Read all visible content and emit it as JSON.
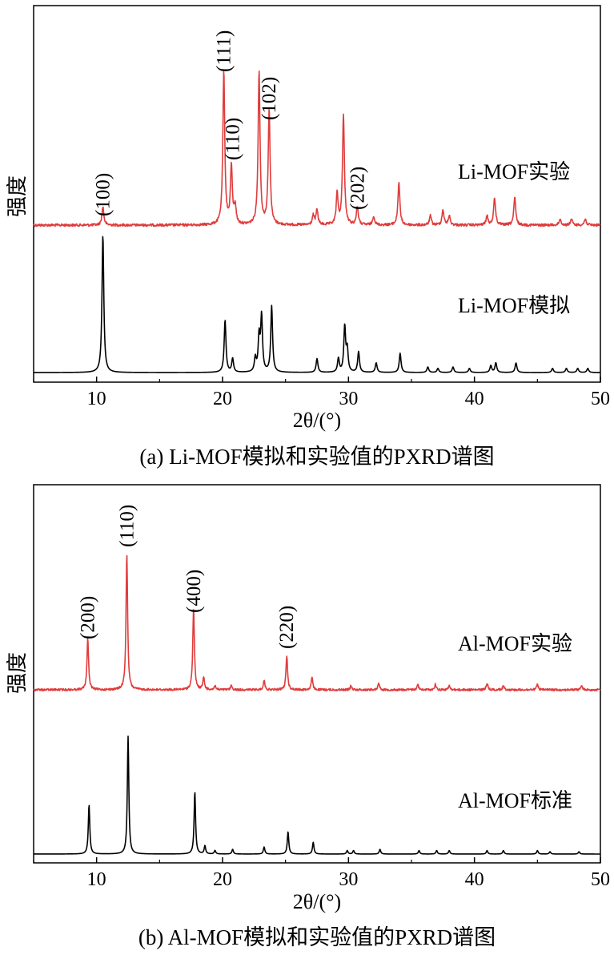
{
  "chart_data": [
    {
      "type": "line",
      "caption": "(a) Li-MOF模拟和实验值的PXRD谱图",
      "xlabel": "2θ/(°)",
      "ylabel": "强度",
      "xlim": [
        5,
        50
      ],
      "xticks": [
        10,
        20,
        30,
        40,
        50
      ],
      "series": [
        {
          "name": "Li-MOF实验",
          "color": "#e03c3c",
          "peaks": [
            [
              10.5,
              0.12
            ],
            [
              20.1,
              1.0
            ],
            [
              20.7,
              0.38
            ],
            [
              21.0,
              0.12
            ],
            [
              22.9,
              1.0
            ],
            [
              23.7,
              0.75
            ],
            [
              27.2,
              0.06
            ],
            [
              27.5,
              0.1
            ],
            [
              29.1,
              0.2
            ],
            [
              29.6,
              0.72
            ],
            [
              30.7,
              0.12
            ],
            [
              32.0,
              0.06
            ],
            [
              34.0,
              0.28
            ],
            [
              36.5,
              0.06
            ],
            [
              37.5,
              0.1
            ],
            [
              38.0,
              0.06
            ],
            [
              41.0,
              0.06
            ],
            [
              41.6,
              0.18
            ],
            [
              43.2,
              0.18
            ],
            [
              46.8,
              0.04
            ],
            [
              47.7,
              0.04
            ],
            [
              48.8,
              0.04
            ]
          ],
          "annotations": [
            {
              "label": "(100)",
              "x": 10.5
            },
            {
              "label": "(111)",
              "x": 20.1
            },
            {
              "label": "(110)",
              "x": 20.8
            },
            {
              "label": "(102)",
              "x": 23.7
            },
            {
              "label": "(202)",
              "x": 30.7
            }
          ]
        },
        {
          "name": "Li-MOF模拟",
          "color": "#000000",
          "peaks": [
            [
              10.5,
              1.0
            ],
            [
              20.2,
              0.38
            ],
            [
              20.8,
              0.1
            ],
            [
              22.6,
              0.1
            ],
            [
              22.9,
              0.25
            ],
            [
              23.1,
              0.4
            ],
            [
              23.9,
              0.48
            ],
            [
              27.5,
              0.1
            ],
            [
              29.2,
              0.1
            ],
            [
              29.7,
              0.33
            ],
            [
              29.9,
              0.16
            ],
            [
              30.8,
              0.15
            ],
            [
              32.2,
              0.07
            ],
            [
              34.1,
              0.14
            ],
            [
              36.3,
              0.04
            ],
            [
              37.1,
              0.03
            ],
            [
              38.3,
              0.04
            ],
            [
              39.6,
              0.03
            ],
            [
              41.3,
              0.05
            ],
            [
              41.7,
              0.07
            ],
            [
              43.3,
              0.07
            ],
            [
              46.2,
              0.03
            ],
            [
              47.3,
              0.03
            ],
            [
              48.2,
              0.03
            ],
            [
              49.0,
              0.03
            ]
          ]
        }
      ]
    },
    {
      "type": "line",
      "caption": "(b) Al-MOF模拟和实验值的PXRD谱图",
      "xlabel": "2θ/(°)",
      "ylabel": "强度",
      "xlim": [
        5,
        50
      ],
      "xticks": [
        10,
        20,
        30,
        40,
        50
      ],
      "series": [
        {
          "name": "Al-MOF实验",
          "color": "#e03c3c",
          "peaks": [
            [
              9.3,
              0.38
            ],
            [
              12.4,
              1.0
            ],
            [
              17.7,
              0.6
            ],
            [
              18.5,
              0.09
            ],
            [
              19.4,
              0.03
            ],
            [
              20.7,
              0.03
            ],
            [
              23.3,
              0.07
            ],
            [
              25.1,
              0.25
            ],
            [
              27.1,
              0.09
            ],
            [
              30.2,
              0.03
            ],
            [
              32.4,
              0.05
            ],
            [
              35.5,
              0.04
            ],
            [
              36.9,
              0.04
            ],
            [
              38.0,
              0.03
            ],
            [
              41.0,
              0.05
            ],
            [
              42.3,
              0.03
            ],
            [
              45.0,
              0.04
            ],
            [
              48.5,
              0.03
            ]
          ],
          "annotations": [
            {
              "label": "(200)",
              "x": 9.3
            },
            {
              "label": "(110)",
              "x": 12.4
            },
            {
              "label": "(400)",
              "x": 17.7
            },
            {
              "label": "(220)",
              "x": 25.1
            }
          ]
        },
        {
          "name": "Al-MOF标准",
          "color": "#000000",
          "peaks": [
            [
              9.4,
              0.42
            ],
            [
              12.5,
              1.0
            ],
            [
              17.8,
              0.53
            ],
            [
              18.6,
              0.07
            ],
            [
              19.4,
              0.03
            ],
            [
              20.8,
              0.04
            ],
            [
              23.3,
              0.06
            ],
            [
              25.2,
              0.19
            ],
            [
              27.2,
              0.1
            ],
            [
              29.9,
              0.03
            ],
            [
              30.4,
              0.03
            ],
            [
              32.5,
              0.04
            ],
            [
              35.6,
              0.03
            ],
            [
              37.0,
              0.03
            ],
            [
              38.0,
              0.03
            ],
            [
              41.0,
              0.03
            ],
            [
              42.3,
              0.03
            ],
            [
              45.0,
              0.03
            ],
            [
              46.0,
              0.02
            ],
            [
              48.3,
              0.02
            ]
          ]
        }
      ]
    }
  ]
}
